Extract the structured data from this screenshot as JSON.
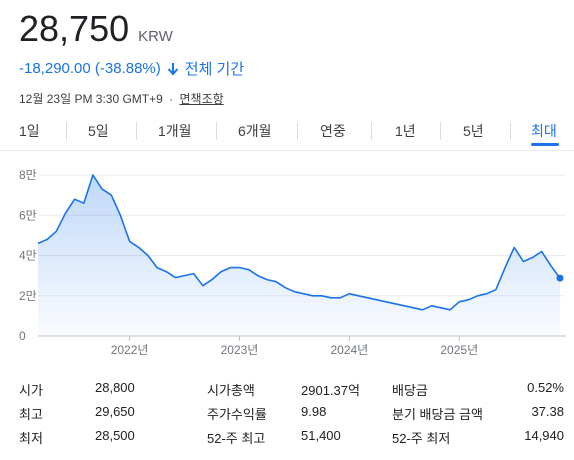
{
  "quote": {
    "price": "28,750",
    "currency": "KRW",
    "change": "-18,290.00 (-38.88%)",
    "period": "전체 기간",
    "timestamp": "12월 23일 PM 3:30 GMT+9",
    "separator": "·",
    "disclaimer": "면책조항"
  },
  "tabs": [
    {
      "label": "1일",
      "active": false
    },
    {
      "label": "5일",
      "active": false
    },
    {
      "label": "1개월",
      "active": false
    },
    {
      "label": "6개월",
      "active": false
    },
    {
      "label": "연중",
      "active": false
    },
    {
      "label": "1년",
      "active": false
    },
    {
      "label": "5년",
      "active": false
    },
    {
      "label": "최대",
      "active": true
    }
  ],
  "colors": {
    "accent": "#1a73e8",
    "line": "#1a73e8",
    "negative": "#1a73e8"
  },
  "chart_data": {
    "type": "area",
    "y_ticks": [
      "8만",
      "6만",
      "4만",
      "2만",
      "0"
    ],
    "y_tick_values": [
      80000,
      60000,
      40000,
      20000,
      0
    ],
    "x_ticks": [
      "2022년",
      "2023년",
      "2024년",
      "2025년"
    ],
    "ylim": [
      0,
      80000
    ],
    "grid": true,
    "series": [
      {
        "points": [
          [
            "2021-03",
            46000
          ],
          [
            "2021-04",
            48000
          ],
          [
            "2021-05",
            52000
          ],
          [
            "2021-06",
            61000
          ],
          [
            "2021-07",
            68000
          ],
          [
            "2021-08",
            66000
          ],
          [
            "2021-09",
            80000
          ],
          [
            "2021-10",
            73000
          ],
          [
            "2021-11",
            70000
          ],
          [
            "2021-12",
            60000
          ],
          [
            "2022-01",
            47000
          ],
          [
            "2022-02",
            44000
          ],
          [
            "2022-03",
            40000
          ],
          [
            "2022-04",
            34000
          ],
          [
            "2022-05",
            32000
          ],
          [
            "2022-06",
            29000
          ],
          [
            "2022-07",
            30000
          ],
          [
            "2022-08",
            31000
          ],
          [
            "2022-09",
            25000
          ],
          [
            "2022-10",
            28000
          ],
          [
            "2022-11",
            32000
          ],
          [
            "2022-12",
            34000
          ],
          [
            "2023-01",
            34000
          ],
          [
            "2023-02",
            33000
          ],
          [
            "2023-03",
            30000
          ],
          [
            "2023-04",
            28000
          ],
          [
            "2023-05",
            27000
          ],
          [
            "2023-06",
            24000
          ],
          [
            "2023-07",
            22000
          ],
          [
            "2023-08",
            21000
          ],
          [
            "2023-09",
            20000
          ],
          [
            "2023-10",
            20000
          ],
          [
            "2023-11",
            19000
          ],
          [
            "2023-12",
            19000
          ],
          [
            "2024-01",
            21000
          ],
          [
            "2024-02",
            20000
          ],
          [
            "2024-03",
            19000
          ],
          [
            "2024-04",
            18000
          ],
          [
            "2024-05",
            17000
          ],
          [
            "2024-06",
            16000
          ],
          [
            "2024-07",
            15000
          ],
          [
            "2024-08",
            14000
          ],
          [
            "2024-09",
            13000
          ],
          [
            "2024-10",
            15000
          ],
          [
            "2024-11",
            14000
          ],
          [
            "2024-12",
            13000
          ],
          [
            "2025-01",
            17000
          ],
          [
            "2025-02",
            18000
          ],
          [
            "2025-03",
            20000
          ],
          [
            "2025-04",
            21000
          ],
          [
            "2025-05",
            23000
          ],
          [
            "2025-06",
            34000
          ],
          [
            "2025-07",
            44000
          ],
          [
            "2025-08",
            37000
          ],
          [
            "2025-09",
            39000
          ],
          [
            "2025-10",
            42000
          ],
          [
            "2025-11",
            35000
          ],
          [
            "2025-12",
            28750
          ]
        ]
      }
    ]
  },
  "stats": [
    {
      "l1": "시가",
      "v1": "28,800",
      "l2": "시가총액",
      "v2": "2901.37억",
      "l3": "배당금",
      "v3": "0.52%"
    },
    {
      "l1": "최고",
      "v1": "29,650",
      "l2": "주가수익률",
      "v2": "9.98",
      "l3": "분기 배당금 금액",
      "v3": "37.38"
    },
    {
      "l1": "최저",
      "v1": "28,500",
      "l2": "52-주 최고",
      "v2": "51,400",
      "l3": "52-주 최저",
      "v3": "14,940"
    }
  ]
}
